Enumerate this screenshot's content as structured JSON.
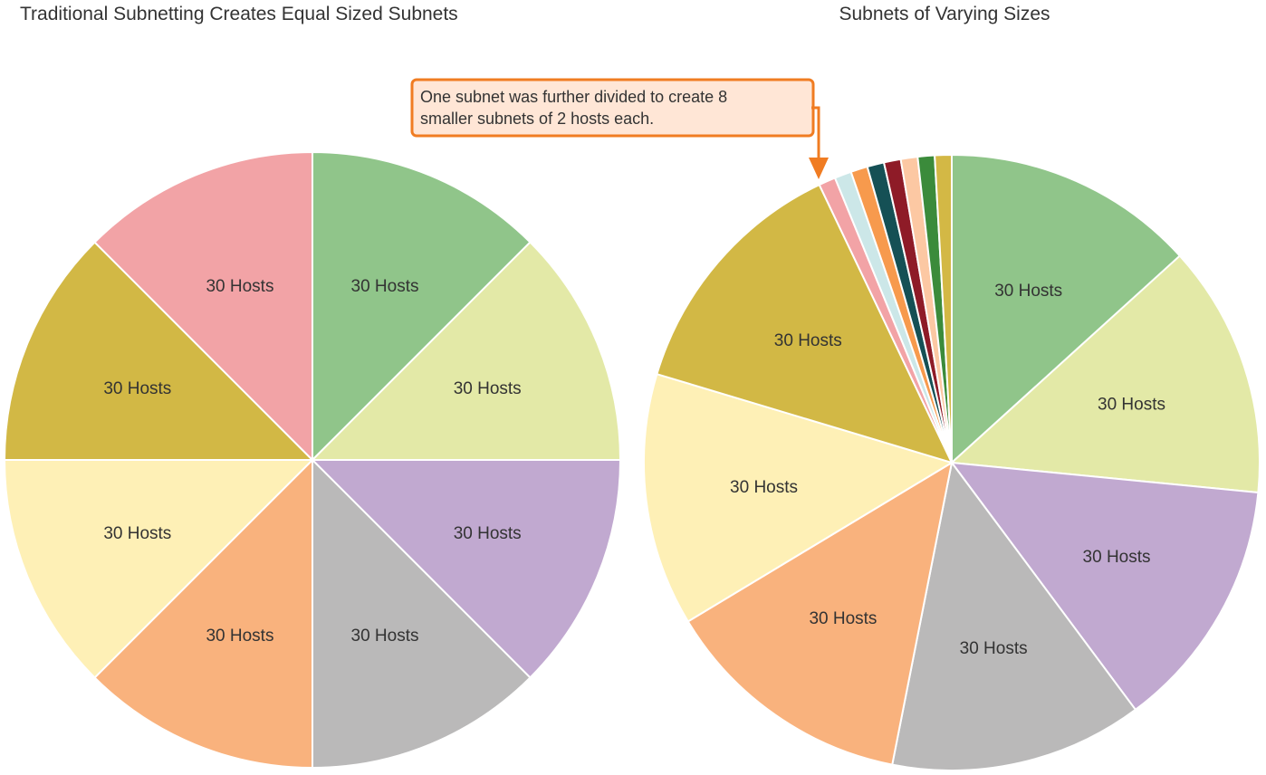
{
  "colors": {
    "green": "#90c58a",
    "lime": "#e3e9a7",
    "purple": "#c1a9d0",
    "gray": "#bab9b9",
    "orange": "#f9b27d",
    "yellow": "#fef0b6",
    "olive": "#d2b845",
    "pink": "#f2a3a6",
    "small_light_cyan": "#cce7e8",
    "small_orange": "#f79a4d",
    "small_dark_teal": "#155055",
    "small_dark_red": "#8e1b27",
    "small_peach": "#fcc8a3",
    "small_green": "#3b8b3b",
    "small_gold": "#d3b845",
    "callout_border": "#f07c22",
    "callout_fill": "#ffe6d6",
    "text": "#333333"
  },
  "callout": {
    "line1": "One subnet was further divided to create 8",
    "line2": "smaller subnets of 2 hosts each."
  },
  "chart_data": [
    {
      "type": "pie",
      "title": "Traditional Subnetting Creates Equal Sized Subnets",
      "slices": [
        {
          "label": "30 Hosts",
          "value": 30,
          "color": "#90c58a"
        },
        {
          "label": "30 Hosts",
          "value": 30,
          "color": "#e3e9a7"
        },
        {
          "label": "30 Hosts",
          "value": 30,
          "color": "#c1a9d0"
        },
        {
          "label": "30 Hosts",
          "value": 30,
          "color": "#bab9b9"
        },
        {
          "label": "30 Hosts",
          "value": 30,
          "color": "#f9b27d"
        },
        {
          "label": "30 Hosts",
          "value": 30,
          "color": "#fef0b6"
        },
        {
          "label": "30 Hosts",
          "value": 30,
          "color": "#d2b845"
        },
        {
          "label": "30 Hosts",
          "value": 30,
          "color": "#f2a3a6"
        }
      ]
    },
    {
      "type": "pie",
      "title": "Subnets of Varying Sizes",
      "slices": [
        {
          "label": "30 Hosts",
          "value": 30,
          "color": "#90c58a"
        },
        {
          "label": "30 Hosts",
          "value": 30,
          "color": "#e3e9a7"
        },
        {
          "label": "30 Hosts",
          "value": 30,
          "color": "#c1a9d0"
        },
        {
          "label": "30 Hosts",
          "value": 30,
          "color": "#bab9b9"
        },
        {
          "label": "30 Hosts",
          "value": 30,
          "color": "#f9b27d"
        },
        {
          "label": "30 Hosts",
          "value": 30,
          "color": "#fef0b6"
        },
        {
          "label": "30 Hosts",
          "value": 30,
          "color": "#d2b845"
        },
        {
          "label": "",
          "value": 2,
          "color": "#f2a3a6"
        },
        {
          "label": "",
          "value": 2,
          "color": "#cce7e8"
        },
        {
          "label": "",
          "value": 2,
          "color": "#f79a4d"
        },
        {
          "label": "",
          "value": 2,
          "color": "#155055"
        },
        {
          "label": "",
          "value": 2,
          "color": "#8e1b27"
        },
        {
          "label": "",
          "value": 2,
          "color": "#fcc8a3"
        },
        {
          "label": "",
          "value": 2,
          "color": "#3b8b3b"
        },
        {
          "label": "",
          "value": 2,
          "color": "#d3b845"
        }
      ]
    }
  ]
}
